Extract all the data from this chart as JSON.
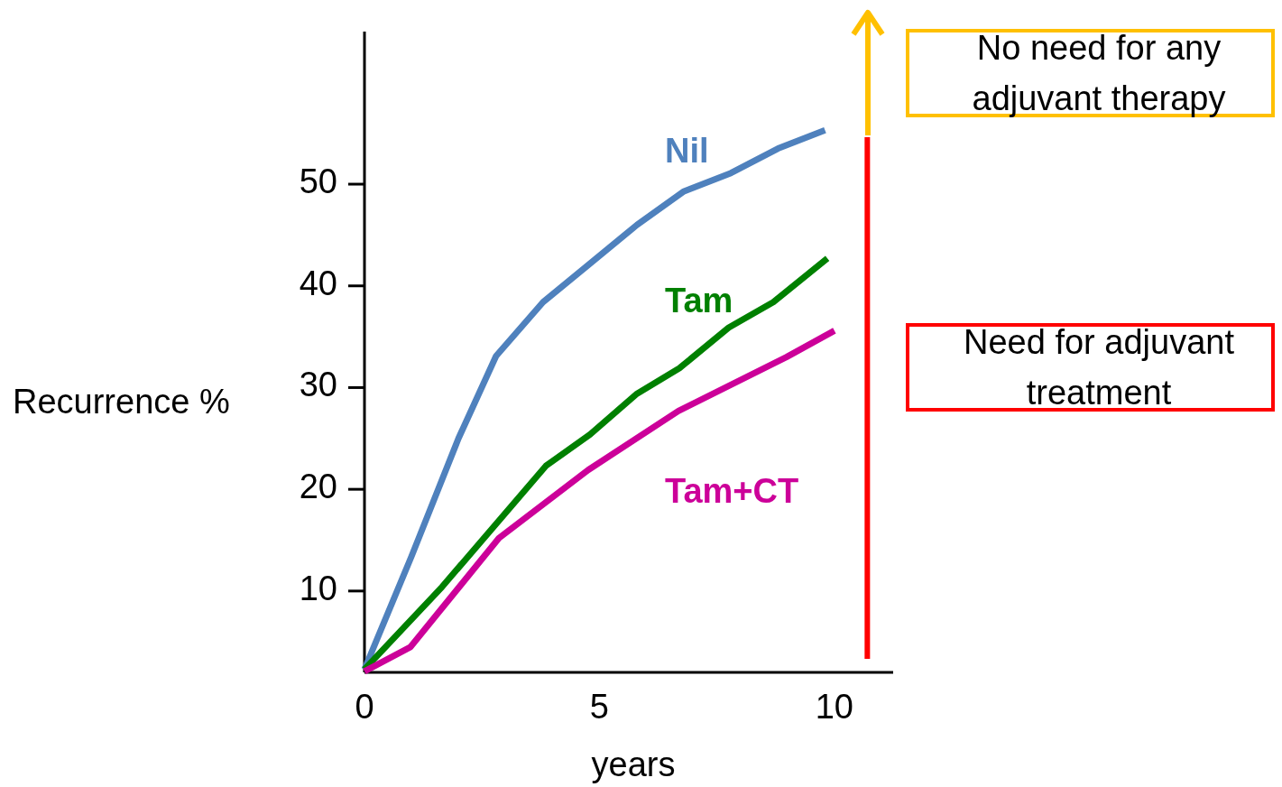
{
  "chart_data": {
    "type": "line",
    "xlabel": "years",
    "ylabel": "Recurrence %",
    "xlim": [
      0,
      11.25
    ],
    "ylim": [
      2,
      65
    ],
    "xticks": [
      0,
      5,
      10
    ],
    "yticks": [
      10,
      20,
      30,
      40,
      50
    ],
    "legend": false,
    "grid": false,
    "marker": "none",
    "line_style": "solid",
    "series": [
      {
        "name": "Nil",
        "color": "#4f81bd",
        "x": [
          0,
          1,
          2,
          2.8,
          3.8,
          4.8,
          5.8,
          6.8,
          7.8,
          8.8,
          9.8
        ],
        "values": [
          2.3,
          13.4,
          25,
          33.1,
          38.4,
          42.2,
          46,
          49.3,
          51.1,
          53.5,
          55.3
        ]
      },
      {
        "name": "Tam",
        "color": "#008000",
        "x": [
          0,
          1.65,
          3.86,
          4.8,
          5.8,
          6.7,
          7.75,
          8.7,
          9.85
        ],
        "values": [
          2.3,
          10.4,
          22.3,
          25.4,
          29.4,
          31.9,
          35.9,
          38.4,
          42.7
        ]
      },
      {
        "name": "Tam+CT",
        "color": "#cc0099",
        "x": [
          0,
          0.98,
          2.86,
          4.76,
          6.68,
          8.98,
          10
        ],
        "values": [
          2.1,
          4.5,
          15.2,
          21.9,
          27.7,
          33,
          35.6
        ]
      }
    ],
    "ref_lines": [
      {
        "axis": "x",
        "value": 10.7,
        "color": "#ff0000"
      }
    ],
    "annotations": [
      "No need for any adjuvant therapy",
      "Need for adjuvant treatment"
    ]
  }
}
